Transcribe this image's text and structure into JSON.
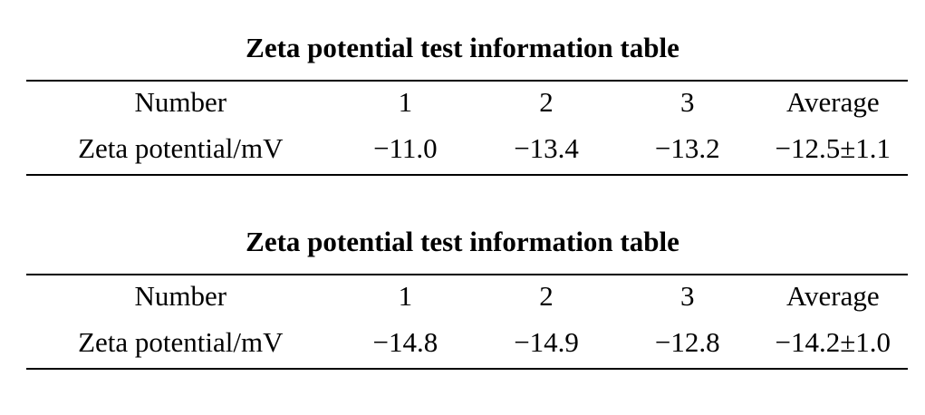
{
  "page": {
    "background_color": "#ffffff",
    "text_color": "#000000",
    "rule_color": "#000000"
  },
  "tables": [
    {
      "title": "Zeta potential test information table",
      "columns": [
        "Number",
        "1",
        "2",
        "3",
        "Average"
      ],
      "rows": [
        {
          "label": "Zeta potential/mV",
          "values": [
            "−11.0",
            "−13.4",
            "−13.2",
            "−12.5±1.1"
          ]
        }
      ]
    },
    {
      "title": "Zeta potential test information table",
      "columns": [
        "Number",
        "1",
        "2",
        "3",
        "Average"
      ],
      "rows": [
        {
          "label": "Zeta potential/mV",
          "values": [
            "−14.8",
            "−14.9",
            "−12.8",
            "−14.2±1.0"
          ]
        }
      ]
    }
  ]
}
